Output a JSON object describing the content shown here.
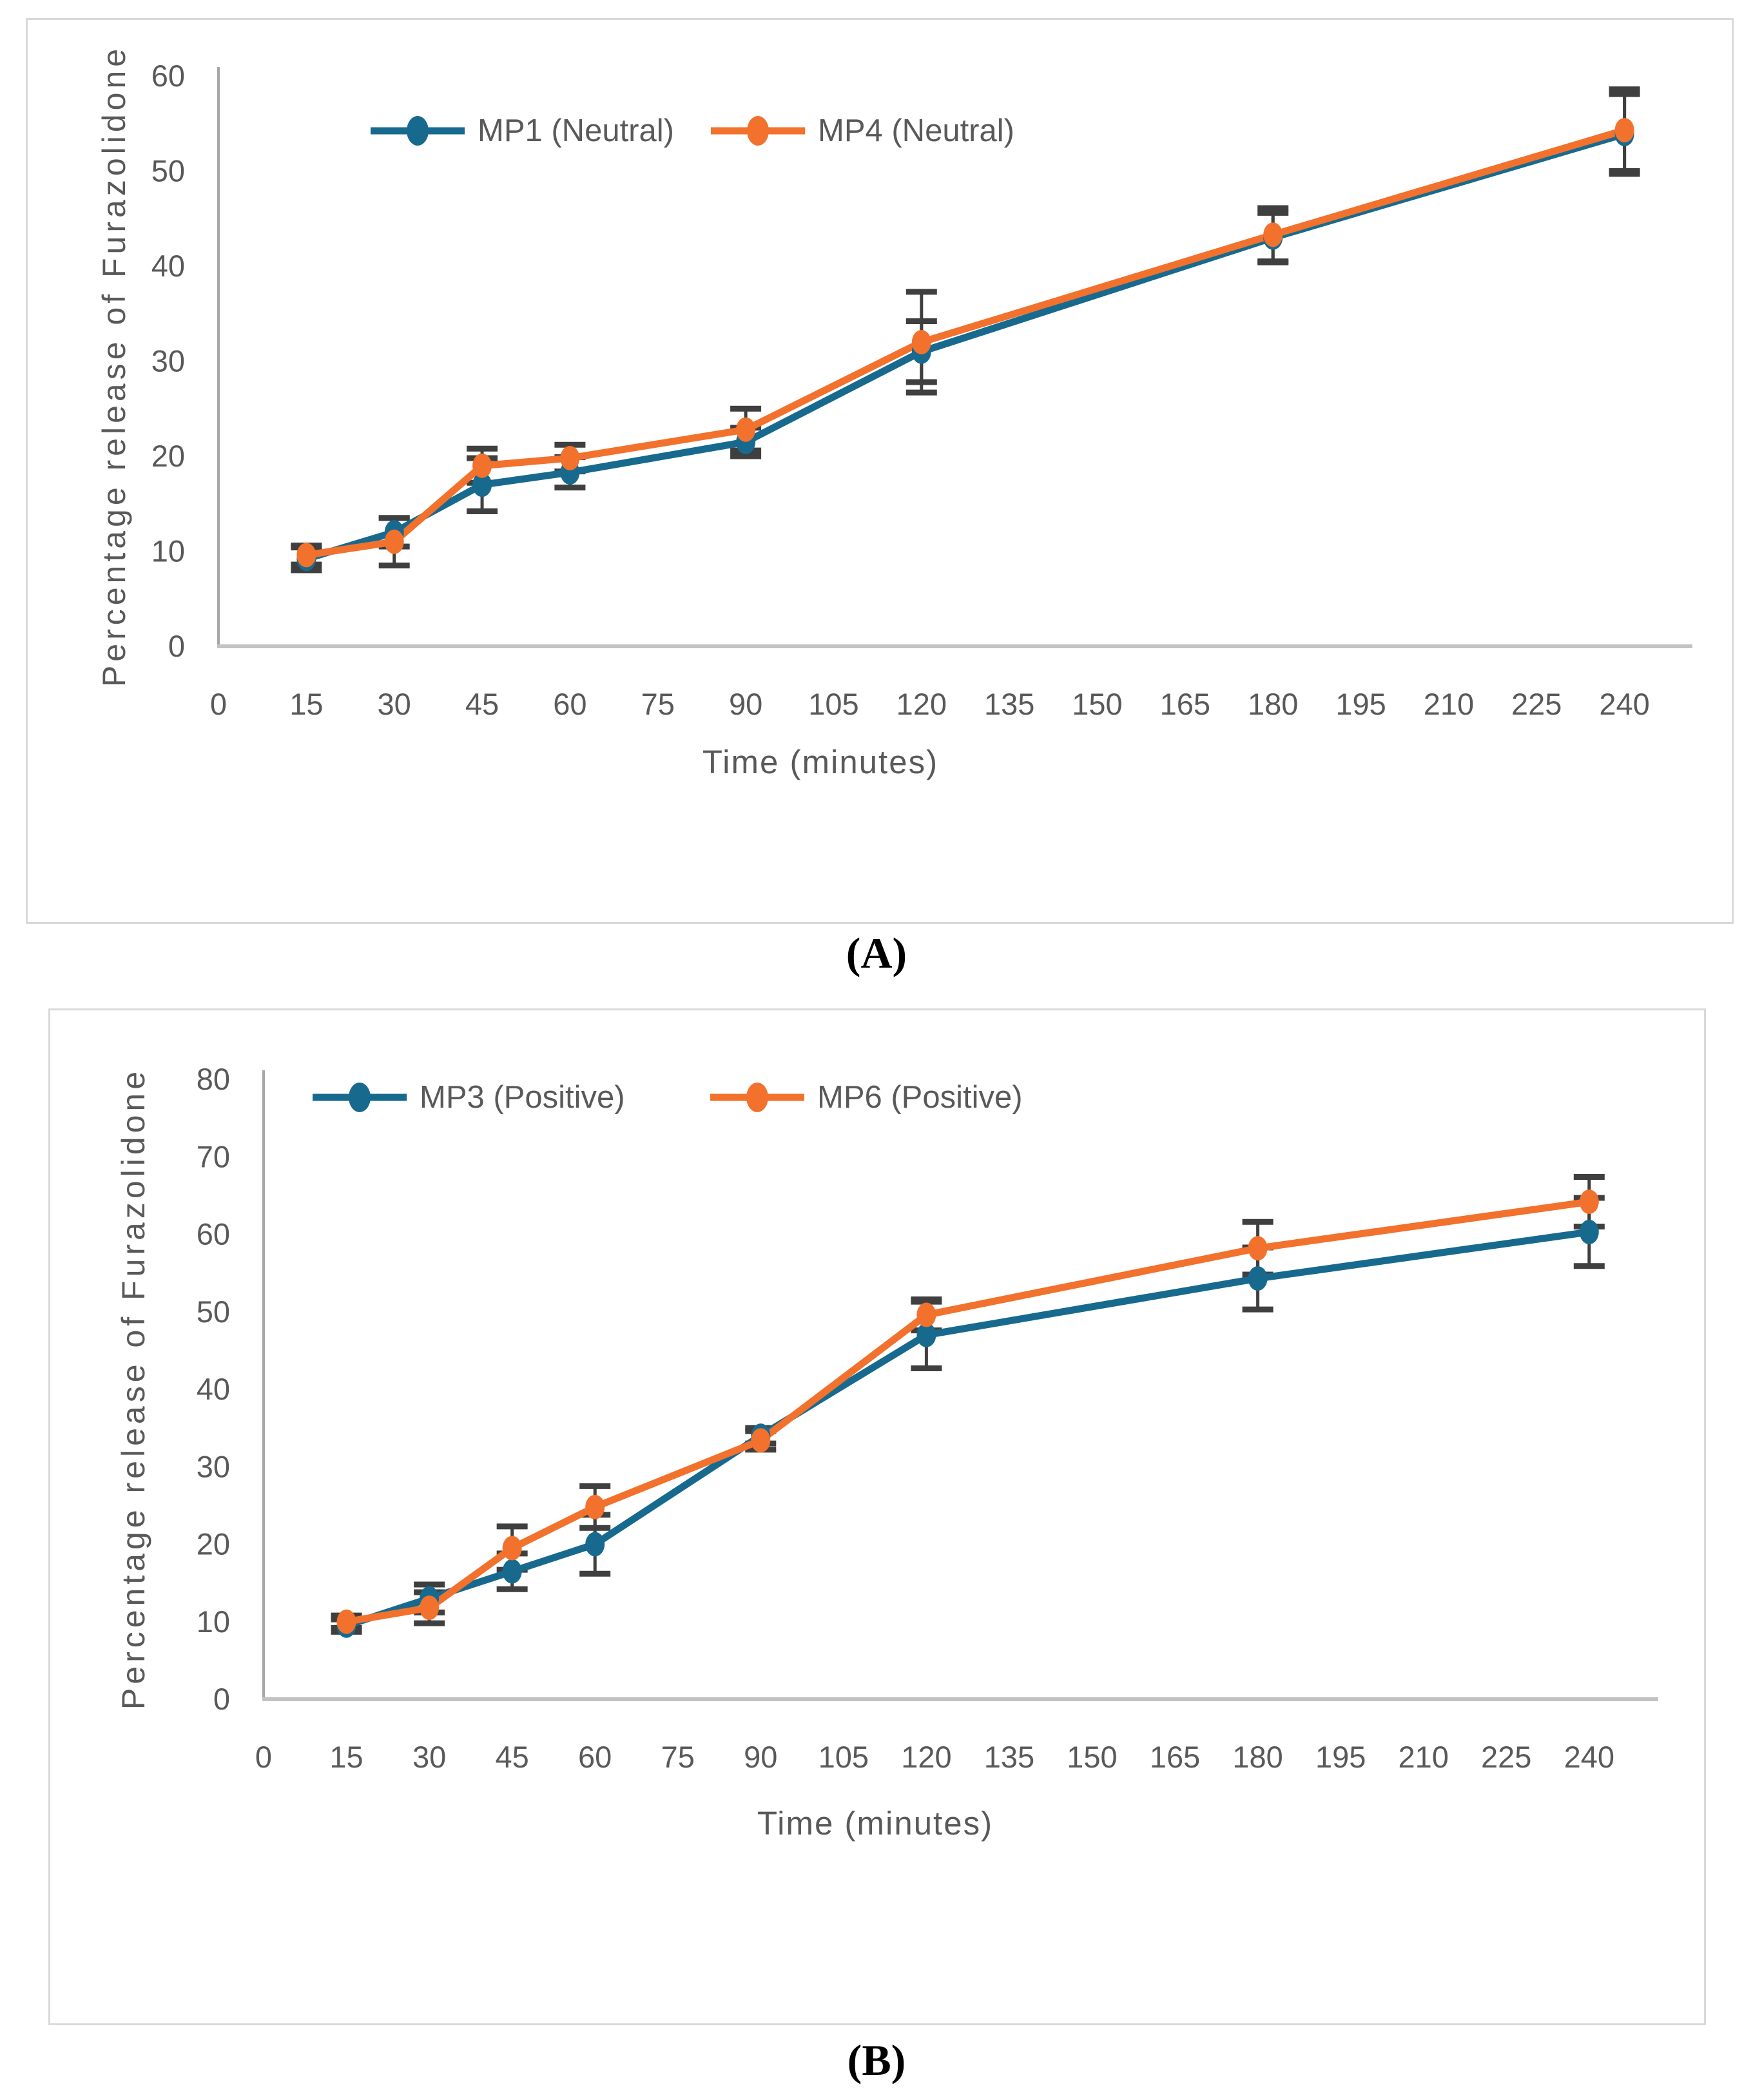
{
  "captions": {
    "a": "(A)",
    "b": "(B)"
  },
  "colors": {
    "series_teal": "#176a8e",
    "series_orange": "#f2712d",
    "text": "#595959",
    "y_axis_line": "#a6a6a6",
    "x_axis_line": "#c2c2c2",
    "error_bar": "#3f3f3f",
    "panel_border": "#d9d9d9"
  },
  "chart_data": [
    {
      "id": "A",
      "type": "line",
      "title": "",
      "xlabel": "Time (minutes)",
      "ylabel": "Percentage release of Furazolidone",
      "x": [
        15,
        30,
        45,
        60,
        90,
        120,
        180,
        240
      ],
      "x_ticks": [
        0,
        15,
        30,
        45,
        60,
        75,
        90,
        105,
        120,
        135,
        150,
        165,
        180,
        195,
        210,
        225,
        240
      ],
      "xlim": [
        0,
        247
      ],
      "ylim": [
        0,
        60
      ],
      "y_ticks": [
        0,
        10,
        20,
        30,
        40,
        50,
        60
      ],
      "grid": false,
      "legend_position": "top",
      "error_bars": true,
      "series": [
        {
          "name": "MP1 (Neutral)",
          "color": "#176a8e",
          "values": [
            9.2,
            12.0,
            17.0,
            18.3,
            21.5,
            31.0,
            43.0,
            53.9
          ],
          "errors": [
            1.2,
            1.5,
            2.8,
            1.6,
            1.5,
            3.2,
            2.6,
            4.2
          ]
        },
        {
          "name": "MP4 (Neutral)",
          "color": "#f2712d",
          "values": [
            9.6,
            11.0,
            19.0,
            19.8,
            22.8,
            32.0,
            43.3,
            54.3
          ],
          "errors": [
            1.0,
            2.5,
            1.8,
            1.4,
            2.2,
            5.3,
            2.8,
            4.3
          ]
        }
      ]
    },
    {
      "id": "B",
      "type": "line",
      "title": "",
      "xlabel": "Time (minutes)",
      "ylabel": "Percentage release of Furazolidone",
      "x": [
        15,
        30,
        45,
        60,
        90,
        120,
        180,
        240
      ],
      "x_ticks": [
        0,
        15,
        30,
        45,
        60,
        75,
        90,
        105,
        120,
        135,
        150,
        165,
        180,
        195,
        210,
        225,
        240
      ],
      "xlim": [
        0,
        247
      ],
      "ylim": [
        0,
        80
      ],
      "y_ticks": [
        0,
        10,
        20,
        30,
        40,
        50,
        60,
        70,
        80
      ],
      "grid": false,
      "legend_position": "top",
      "error_bars": true,
      "series": [
        {
          "name": "MP3 (Positive)",
          "color": "#176a8e",
          "values": [
            9.5,
            13.0,
            16.5,
            20.0,
            34.0,
            47.0,
            54.3,
            60.3
          ],
          "errors": [
            0.8,
            1.8,
            2.3,
            3.8,
            1.0,
            4.3,
            4.0,
            4.4
          ]
        },
        {
          "name": "MP6 (Positive)",
          "color": "#f2712d",
          "values": [
            10.0,
            11.8,
            19.5,
            24.8,
            33.4,
            49.6,
            58.2,
            64.2
          ],
          "errors": [
            0.8,
            2.0,
            2.8,
            2.7,
            1.2,
            2.0,
            3.4,
            3.2
          ]
        }
      ]
    }
  ]
}
